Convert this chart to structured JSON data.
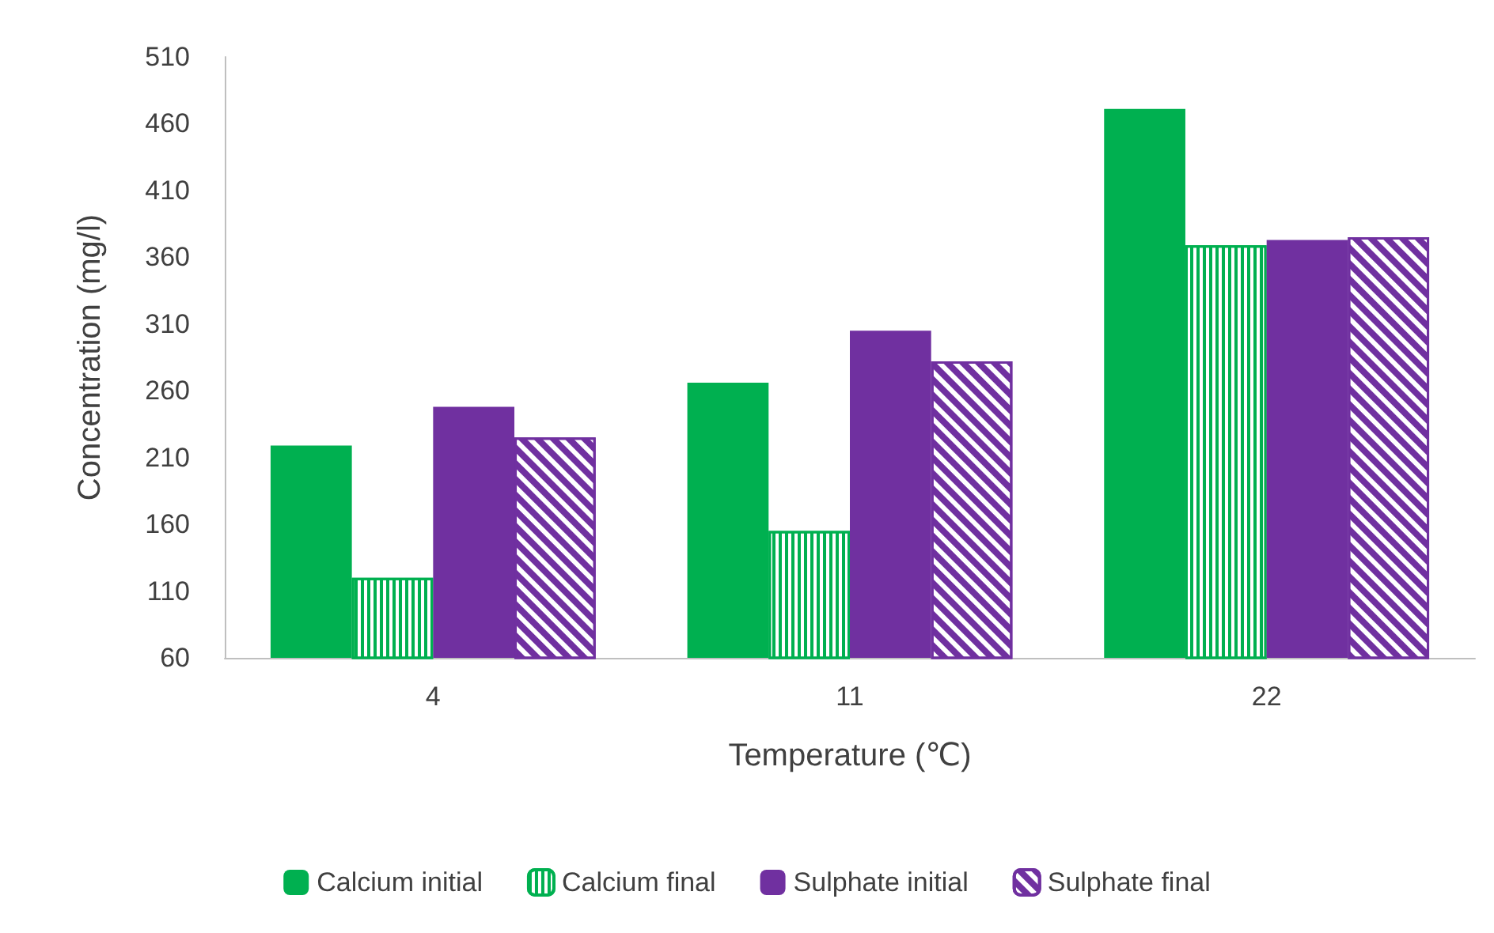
{
  "chart_data": {
    "type": "bar",
    "xlabel": "Temperature (℃)",
    "ylabel": "Concentration (mg/l)",
    "categories": [
      "4",
      "11",
      "22"
    ],
    "series": [
      {
        "name": "Calcium initial",
        "color": "#00b050",
        "values": [
          219,
          266,
          471
        ]
      },
      {
        "name": "Calcium final",
        "color": "#00b050",
        "values": [
          120,
          155,
          369
        ]
      },
      {
        "name": "Sulphate initial",
        "color": "#7030a0",
        "values": [
          248,
          305,
          373
        ]
      },
      {
        "name": "Sulphate final",
        "color": "#7030a0",
        "values": [
          225,
          282,
          375
        ]
      }
    ],
    "ylim": [
      60,
      510
    ],
    "yticks": [
      60,
      110,
      160,
      210,
      260,
      310,
      360,
      410,
      460,
      510
    ],
    "grid": false,
    "legend": "bottom"
  }
}
